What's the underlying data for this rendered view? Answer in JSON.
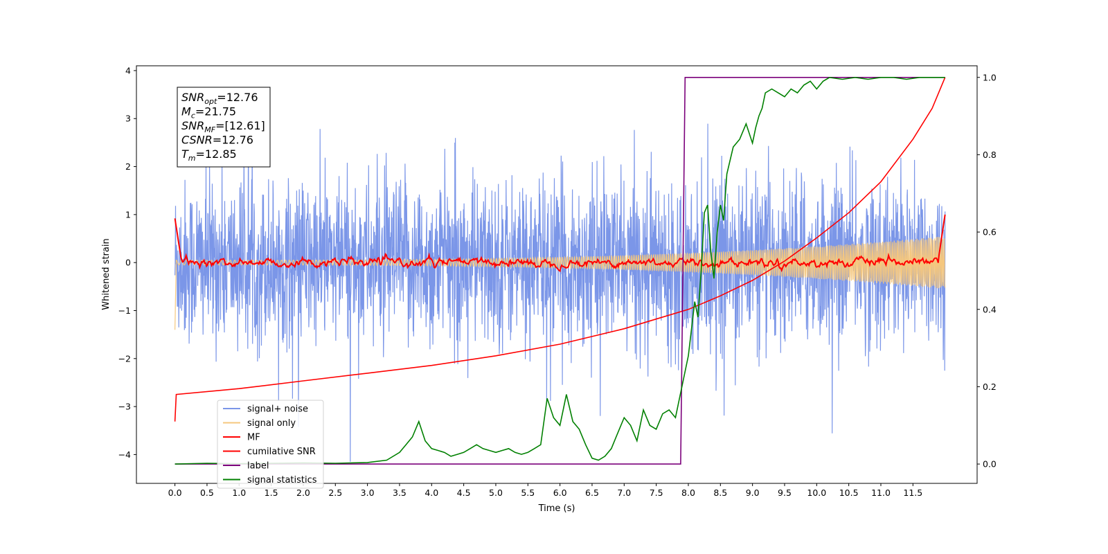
{
  "chart_data": {
    "type": "line",
    "xlabel": "Time (s)",
    "ylabel_left": "Whitened strain",
    "ylabel_right": "",
    "xlim": [
      -0.6,
      12.5
    ],
    "ylim_left": [
      -4.6,
      4.1
    ],
    "ylim_right": [
      -0.05,
      1.03
    ],
    "x_ticks": [
      "0.0",
      "0.5",
      "1.0",
      "1.5",
      "2.0",
      "2.5",
      "3.0",
      "3.5",
      "4.0",
      "4.5",
      "5.0",
      "5.5",
      "6.0",
      "6.5",
      "7.0",
      "7.5",
      "8.0",
      "8.5",
      "9.0",
      "9.5",
      "10.0",
      "10.5",
      "11.0",
      "11.5"
    ],
    "y_ticks_left": [
      "4",
      "3",
      "2",
      "1",
      "0",
      "−1",
      "−2",
      "−3",
      "−4"
    ],
    "y_ticks_right": [
      "1.0",
      "0.8",
      "0.6",
      "0.4",
      "0.2",
      "0.0"
    ],
    "grid": false,
    "legend_location": "lower-left",
    "info_box": {
      "lines": [
        {
          "label": "SNR",
          "sub": "opt",
          "value": "=12.76"
        },
        {
          "label": "M",
          "sub": "c",
          "value": "=21.75"
        },
        {
          "label": "SNR",
          "sub": "MF",
          "value": "=[12.61]"
        },
        {
          "label": "CSNR",
          "sub": "",
          "value": "=12.76"
        },
        {
          "label": "T",
          "sub": "m",
          "value": "=12.85"
        }
      ]
    },
    "series": [
      {
        "name": "signal+ noise",
        "axis": "left",
        "color": "#7b96e8",
        "style": "noise",
        "description_values": {
          "x_range": [
            0.0,
            12.0
          ],
          "y_typical_amplitude": 1.0,
          "y_min": -4.15,
          "y_max": 3.72
        }
      },
      {
        "name": "signal only",
        "axis": "left",
        "color": "#f5c77e",
        "style": "chirp",
        "description_values": {
          "x_range": [
            0.0,
            12.0
          ],
          "start_value": -1.4,
          "end_amplitude": 0.55
        }
      },
      {
        "name": "MF",
        "axis": "left",
        "color": "#ff0000",
        "style": "wiggle",
        "description_values": {
          "x_range": [
            0.0,
            12.0
          ],
          "start_value": 0.92,
          "end_value": 1.0
        }
      },
      {
        "name": "cumilative SNR",
        "axis": "right",
        "color": "#ff0000",
        "x": [
          0.0,
          0.02,
          1.0,
          2.0,
          3.0,
          4.0,
          5.0,
          6.0,
          7.0,
          7.5,
          8.0,
          8.5,
          9.0,
          9.5,
          10.0,
          10.5,
          11.0,
          11.5,
          11.8,
          12.0
        ],
        "y": [
          0.11,
          0.18,
          0.195,
          0.215,
          0.235,
          0.255,
          0.28,
          0.31,
          0.35,
          0.375,
          0.4,
          0.435,
          0.475,
          0.525,
          0.585,
          0.65,
          0.73,
          0.84,
          0.92,
          1.0
        ]
      },
      {
        "name": "label",
        "axis": "right",
        "color": "#7b007b",
        "x": [
          0.0,
          7.88,
          7.95,
          12.0
        ],
        "y": [
          0.0,
          0.0,
          1.0,
          1.0
        ]
      },
      {
        "name": "signal statistics",
        "axis": "right",
        "color": "#008000",
        "x": [
          0.0,
          0.5,
          1.0,
          1.5,
          2.0,
          2.5,
          3.0,
          3.3,
          3.5,
          3.6,
          3.7,
          3.8,
          3.9,
          4.0,
          4.1,
          4.2,
          4.3,
          4.4,
          4.5,
          4.6,
          4.7,
          4.8,
          4.9,
          5.0,
          5.1,
          5.2,
          5.3,
          5.4,
          5.5,
          5.6,
          5.7,
          5.8,
          5.9,
          6.0,
          6.1,
          6.2,
          6.3,
          6.4,
          6.5,
          6.6,
          6.7,
          6.8,
          6.9,
          7.0,
          7.1,
          7.2,
          7.3,
          7.4,
          7.5,
          7.6,
          7.7,
          7.8,
          7.9,
          8.0,
          8.05,
          8.1,
          8.15,
          8.2,
          8.25,
          8.3,
          8.35,
          8.4,
          8.45,
          8.5,
          8.55,
          8.6,
          8.7,
          8.8,
          8.9,
          9.0,
          9.05,
          9.1,
          9.15,
          9.2,
          9.3,
          9.4,
          9.5,
          9.6,
          9.7,
          9.8,
          9.9,
          10.0,
          10.1,
          10.2,
          10.4,
          10.6,
          10.8,
          11.0,
          11.2,
          11.4,
          11.6,
          11.8,
          12.0
        ],
        "y": [
          0.0,
          0.002,
          0.001,
          0.002,
          0.003,
          0.002,
          0.004,
          0.01,
          0.03,
          0.05,
          0.07,
          0.11,
          0.06,
          0.04,
          0.035,
          0.03,
          0.02,
          0.025,
          0.03,
          0.04,
          0.05,
          0.04,
          0.035,
          0.03,
          0.035,
          0.04,
          0.03,
          0.025,
          0.03,
          0.04,
          0.05,
          0.17,
          0.12,
          0.1,
          0.18,
          0.11,
          0.09,
          0.05,
          0.015,
          0.01,
          0.02,
          0.04,
          0.08,
          0.12,
          0.1,
          0.06,
          0.14,
          0.1,
          0.09,
          0.13,
          0.14,
          0.12,
          0.2,
          0.28,
          0.35,
          0.42,
          0.38,
          0.5,
          0.65,
          0.67,
          0.55,
          0.48,
          0.6,
          0.67,
          0.63,
          0.75,
          0.82,
          0.84,
          0.88,
          0.83,
          0.87,
          0.9,
          0.92,
          0.96,
          0.97,
          0.96,
          0.95,
          0.97,
          0.96,
          0.98,
          0.99,
          0.97,
          0.99,
          1.0,
          0.995,
          1.0,
          0.995,
          1.0,
          1.0,
          0.995,
          1.0,
          1.0,
          1.0
        ]
      }
    ]
  }
}
